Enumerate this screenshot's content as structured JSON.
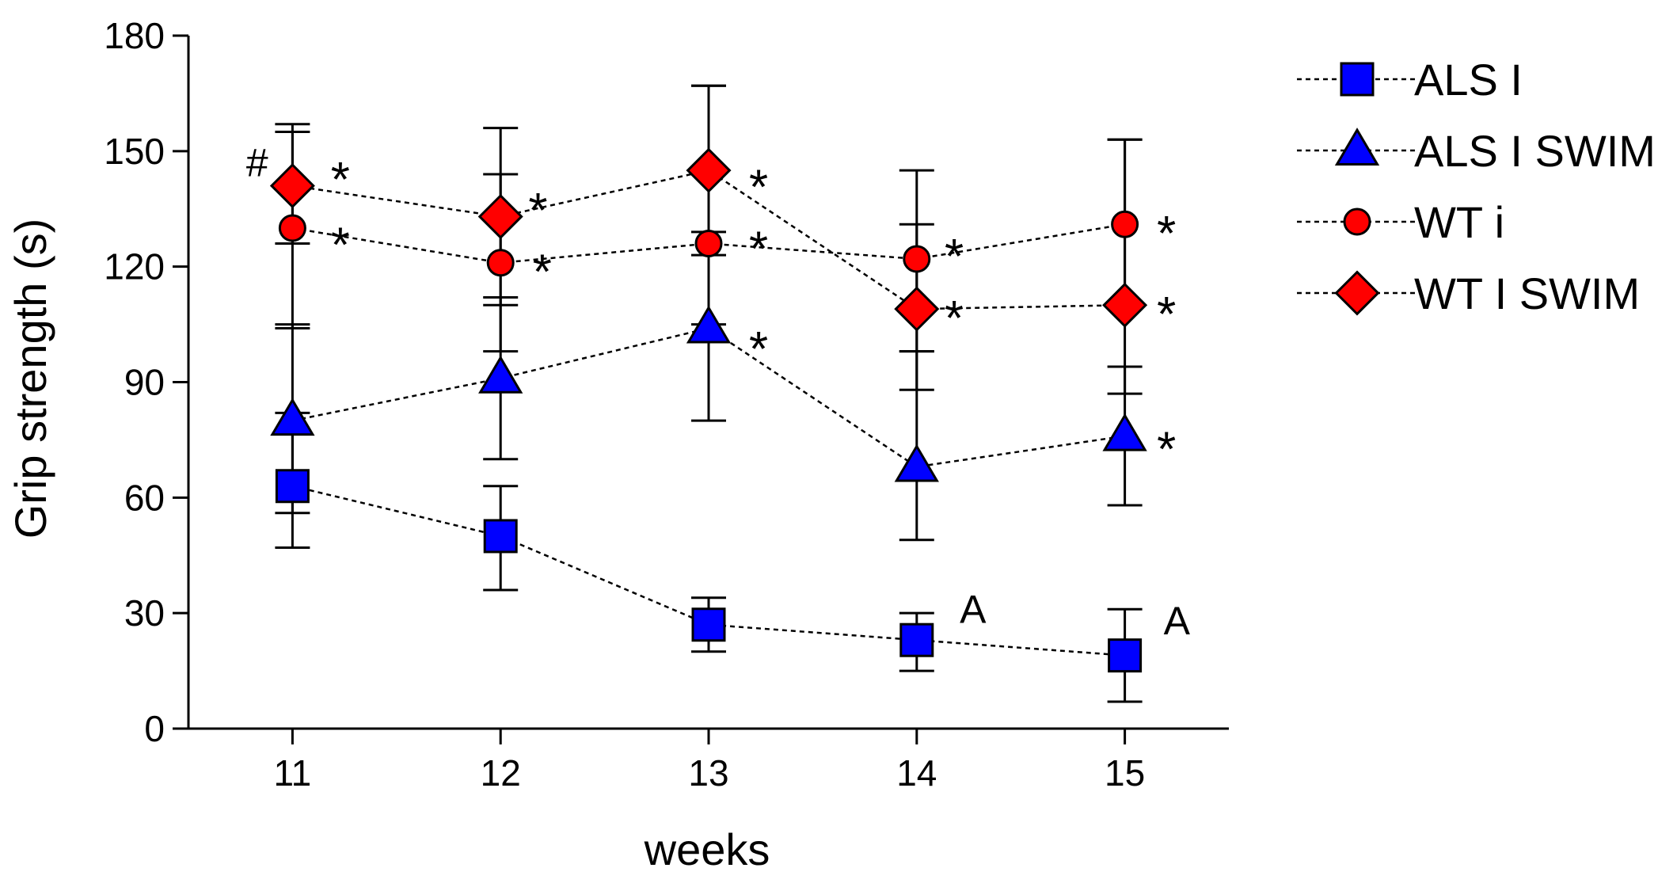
{
  "chart_data": {
    "type": "line",
    "title": "",
    "xlabel": "weeks",
    "ylabel": "Grip strength (s)",
    "x": [
      11,
      12,
      13,
      14,
      15
    ],
    "xlim": [
      10.5,
      15.5
    ],
    "ylim": [
      0,
      180
    ],
    "yticks": [
      0,
      30,
      60,
      90,
      120,
      150,
      180
    ],
    "grid": false,
    "legend_position": "right",
    "series": [
      {
        "name": "ALS I",
        "marker": "square",
        "color": "#0000ff",
        "values": [
          63,
          50,
          27,
          23,
          19
        ],
        "err_high": [
          82,
          63,
          34,
          30,
          31
        ],
        "err_low": [
          47,
          36,
          20,
          15,
          7
        ]
      },
      {
        "name": "ALS I SWIM",
        "marker": "triangle",
        "color": "#0000ff",
        "values": [
          80,
          91,
          104,
          68,
          76
        ],
        "err_high": [
          105,
          112,
          129,
          98,
          94
        ],
        "err_low": [
          56,
          70,
          80,
          49,
          58
        ]
      },
      {
        "name": "WT i",
        "marker": "circle",
        "color": "#ff0000",
        "values": [
          130,
          121,
          126,
          122,
          131
        ],
        "err_high": [
          157,
          144,
          167,
          145,
          153
        ],
        "err_low": [
          104,
          98,
          105,
          98,
          109
        ]
      },
      {
        "name": "WT I SWIM",
        "marker": "diamond",
        "color": "#ff0000",
        "values": [
          141,
          133,
          145,
          109,
          110
        ],
        "err_high": [
          155,
          156,
          167,
          131,
          153
        ],
        "err_low": [
          126,
          110,
          123,
          88,
          87
        ]
      }
    ],
    "annotations": [
      {
        "text": "#",
        "x": 10.83,
        "y": 147,
        "kind": "hash"
      },
      {
        "text": "*",
        "x": 11.23,
        "y": 144,
        "kind": "star"
      },
      {
        "text": "*",
        "x": 11.23,
        "y": 127,
        "kind": "star"
      },
      {
        "text": "*",
        "x": 12.18,
        "y": 136,
        "kind": "star"
      },
      {
        "text": "*",
        "x": 12.2,
        "y": 120,
        "kind": "star"
      },
      {
        "text": "*",
        "x": 13.24,
        "y": 142,
        "kind": "star"
      },
      {
        "text": "*",
        "x": 13.24,
        "y": 126,
        "kind": "star"
      },
      {
        "text": "*",
        "x": 13.24,
        "y": 100,
        "kind": "star"
      },
      {
        "text": "*",
        "x": 14.18,
        "y": 124,
        "kind": "star"
      },
      {
        "text": "*",
        "x": 14.18,
        "y": 108,
        "kind": "star"
      },
      {
        "text": "*",
        "x": 15.2,
        "y": 130,
        "kind": "star"
      },
      {
        "text": "*",
        "x": 15.2,
        "y": 109,
        "kind": "star"
      },
      {
        "text": "*",
        "x": 15.2,
        "y": 74,
        "kind": "star"
      },
      {
        "text": "A",
        "x": 14.27,
        "y": 31,
        "kind": "letter"
      },
      {
        "text": "A",
        "x": 15.25,
        "y": 28,
        "kind": "letter"
      }
    ]
  },
  "colors": {
    "axis": "#000000",
    "marker_stroke": "#000000"
  }
}
